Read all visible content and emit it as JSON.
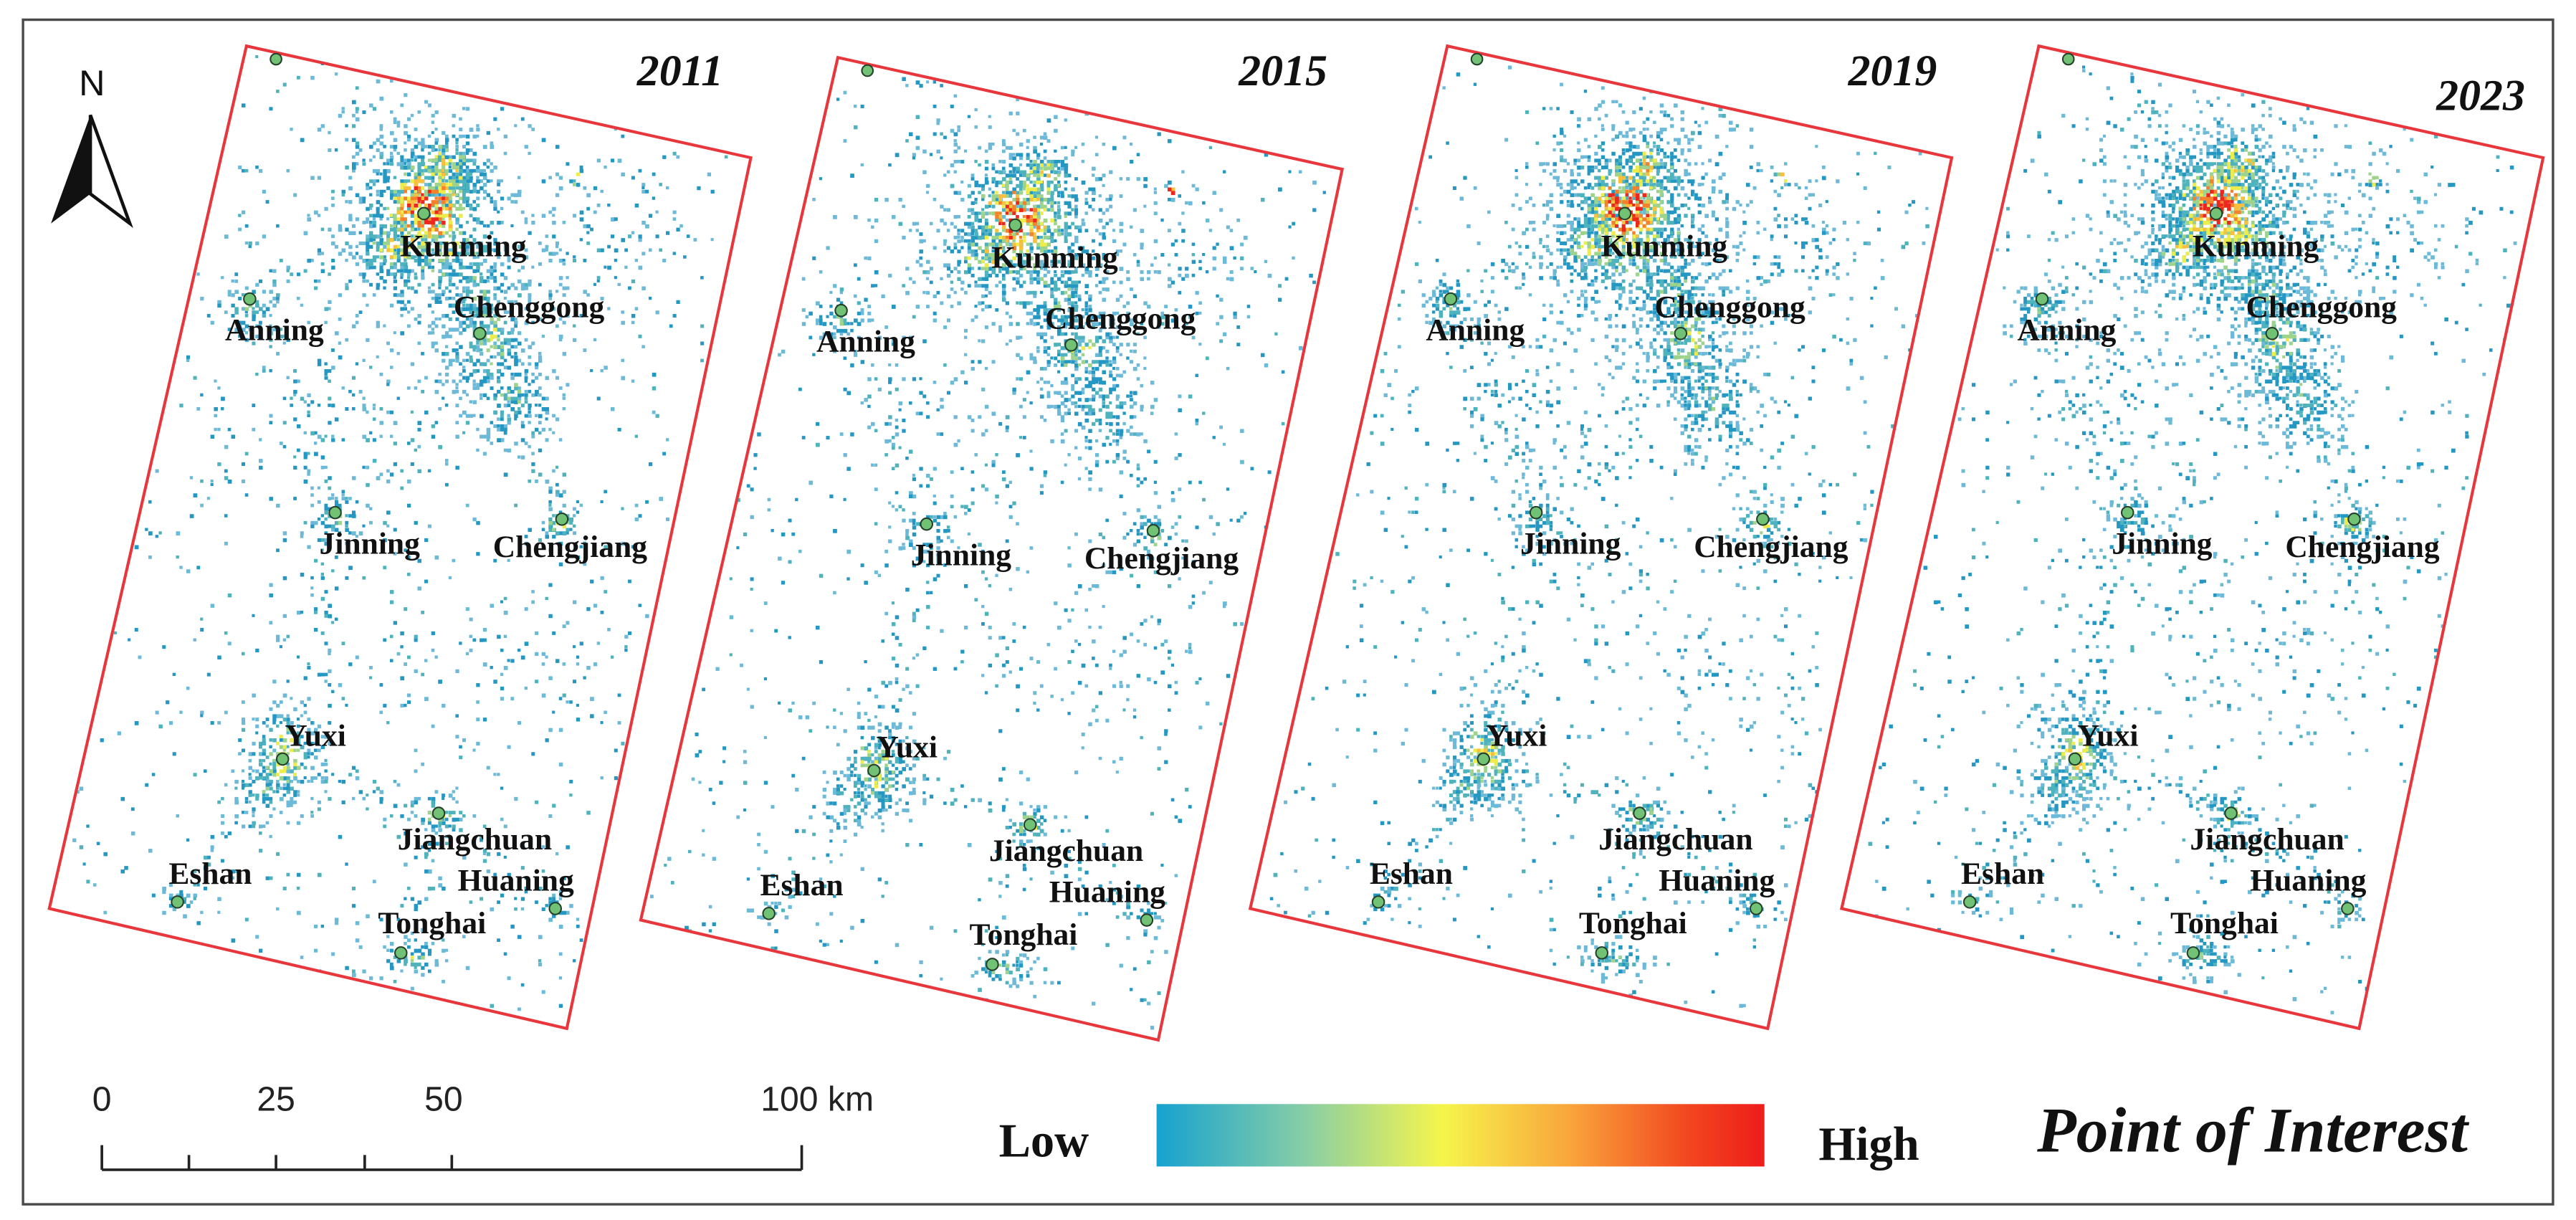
{
  "north_arrow": {
    "label": "N",
    "icon": "north-arrow-icon"
  },
  "panels": [
    {
      "year": "2011"
    },
    {
      "year": "2015"
    },
    {
      "year": "2019"
    },
    {
      "year": "2023"
    }
  ],
  "cities": [
    {
      "name": "Kunming"
    },
    {
      "name": "Chenggong"
    },
    {
      "name": "Anning"
    },
    {
      "name": "Jinning"
    },
    {
      "name": "Chengjiang"
    },
    {
      "name": "Yuxi"
    },
    {
      "name": "Jiangchuan"
    },
    {
      "name": "Huaning"
    },
    {
      "name": "Eshan"
    },
    {
      "name": "Tonghai"
    }
  ],
  "scale_bar": {
    "labels": [
      "0",
      "25",
      "50",
      "100 km"
    ]
  },
  "legend": {
    "low_label": "Low",
    "high_label": "High",
    "title": "Point of Interest",
    "gradient_colors": [
      "#16a2d0",
      "#86cda6",
      "#f6f54c",
      "#f9a53b",
      "#f2441f",
      "#ee1d1b"
    ]
  },
  "colors": {
    "boundary": "#e8373c",
    "city_marker_fill": "#72c276",
    "city_marker_stroke": "#24402a",
    "frame": "#4a4a4a",
    "density_palette": [
      "#6cb9d8",
      "#2497c3",
      "#4eb3bd",
      "#9ed38c",
      "#ecec4a",
      "#f9c03d",
      "#f4822c",
      "#ec271d"
    ]
  }
}
